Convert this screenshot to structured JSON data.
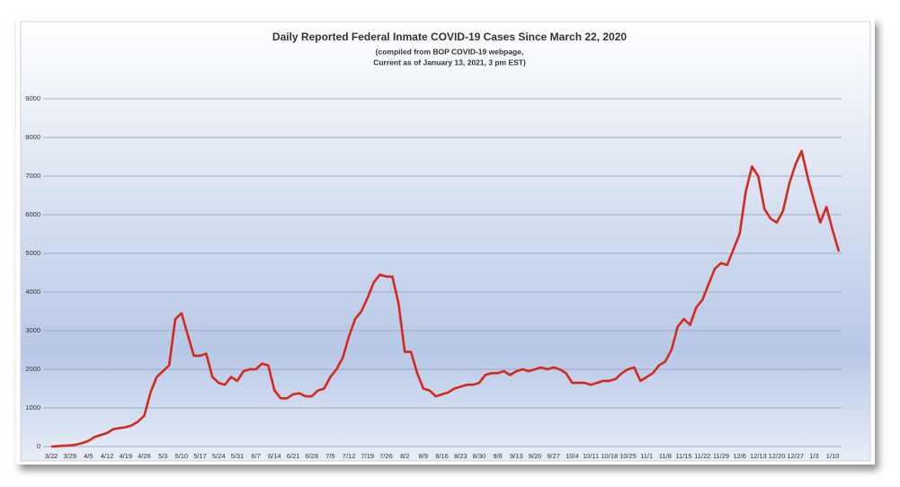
{
  "chart_data": {
    "type": "line",
    "title": "Daily Reported Federal Inmate COVID-19 Cases Since March 22, 2020",
    "subtitle": [
      "(compiled from BOP COVID-19 webpage,",
      "Current as of January 13, 2021, 3 pm EST)"
    ],
    "categories": [
      "3/22",
      null,
      null,
      "3/29",
      null,
      null,
      "4/5",
      null,
      null,
      "4/12",
      null,
      null,
      "4/19",
      null,
      null,
      "4/26",
      null,
      null,
      "5/3",
      null,
      null,
      "5/10",
      null,
      null,
      "5/17",
      null,
      null,
      "5/24",
      null,
      null,
      "5/31",
      null,
      null,
      "6/7",
      null,
      null,
      "6/14",
      null,
      null,
      "6/21",
      null,
      null,
      "6/28",
      null,
      null,
      "7/5",
      null,
      null,
      "7/12",
      null,
      null,
      "7/19",
      null,
      null,
      "7/26",
      null,
      null,
      "8/2",
      null,
      null,
      "8/9",
      null,
      null,
      "8/16",
      null,
      null,
      "8/23",
      null,
      null,
      "8/30",
      null,
      null,
      "9/6",
      null,
      null,
      "9/13",
      null,
      null,
      "9/20",
      null,
      null,
      "9/27",
      null,
      null,
      "10/4",
      null,
      null,
      "10/11",
      null,
      null,
      "10/18",
      null,
      null,
      "10/25",
      null,
      null,
      "11/1",
      null,
      null,
      "11/8",
      null,
      null,
      "11/15",
      null,
      null,
      "11/22",
      null,
      null,
      "11/29",
      null,
      null,
      "12/6",
      null,
      null,
      "12/13",
      null,
      null,
      "12/20",
      null,
      null,
      "12/27",
      null,
      null,
      "1/3",
      null,
      null,
      "1/10",
      null
    ],
    "values": [
      0,
      10,
      20,
      30,
      50,
      90,
      150,
      250,
      300,
      350,
      450,
      480,
      500,
      550,
      650,
      800,
      1400,
      1800,
      1950,
      2100,
      3300,
      3450,
      2900,
      2350,
      2350,
      2400,
      1800,
      1650,
      1600,
      1800,
      1700,
      1950,
      2000,
      2000,
      2150,
      2100,
      1450,
      1250,
      1250,
      1350,
      1380,
      1300,
      1300,
      1450,
      1500,
      1800,
      2000,
      2300,
      2850,
      3300,
      3500,
      3850,
      4250,
      4450,
      4400,
      4400,
      3700,
      2450,
      2450,
      1900,
      1500,
      1450,
      1300,
      1350,
      1400,
      1500,
      1550,
      1600,
      1600,
      1650,
      1850,
      1900,
      1900,
      1950,
      1850,
      1950,
      2000,
      1950,
      2000,
      2050,
      2000,
      2050,
      2000,
      1900,
      1650,
      1650,
      1650,
      1600,
      1650,
      1700,
      1700,
      1750,
      1900,
      2000,
      2050,
      1700,
      1800,
      1900,
      2100,
      2200,
      2500,
      3100,
      3300,
      3150,
      3600,
      3800,
      4200,
      4600,
      4750,
      4700,
      5100,
      5500,
      6600,
      7250,
      7000,
      6150,
      5900,
      5800,
      6100,
      6800,
      7300,
      7650,
      6950,
      6350,
      5800,
      6200,
      5600,
      5050
    ],
    "color": "#d42a1e",
    "ylim": [
      0,
      9000
    ],
    "yticks": [
      0,
      1000,
      2000,
      3000,
      4000,
      5000,
      6000,
      7000,
      8000,
      9000
    ],
    "grid": true
  }
}
